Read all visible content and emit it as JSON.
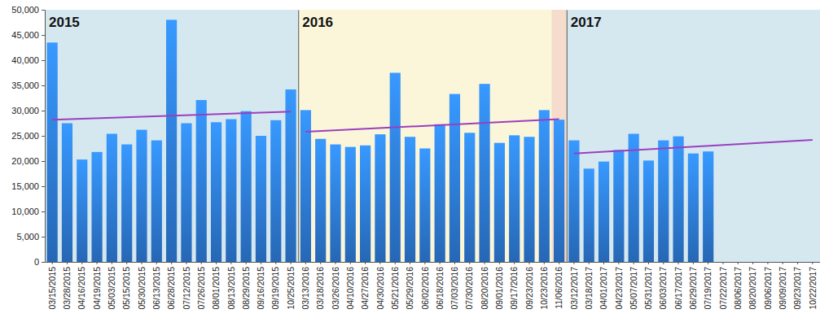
{
  "chart_data": [
    {
      "type": "bar",
      "title": "2015",
      "categories": [
        "03/15/2015",
        "03/28/2015",
        "04/16/2015",
        "04/19/2015",
        "05/03/2015",
        "05/15/2015",
        "05/30/2015",
        "06/13/2015",
        "06/28/2015",
        "07/12/2015",
        "07/26/2015",
        "08/01/2015",
        "08/13/2015",
        "08/29/2015",
        "09/16/2015",
        "09/19/2015",
        "10/25/2015"
      ],
      "values": [
        43500,
        27500,
        20300,
        21800,
        25400,
        23300,
        26200,
        24100,
        48000,
        27500,
        32100,
        27700,
        28300,
        29900,
        25000,
        28100,
        34200
      ],
      "trend": [
        28200,
        29800
      ],
      "color": "#2f80e0",
      "ylim": [
        0,
        50000
      ],
      "yticks": [
        0,
        {
          "value": 5000,
          "label": "5,000"
        },
        {
          "value": 10000,
          "label": "10,000"
        },
        {
          "value": 15000,
          "label": "15,000"
        },
        {
          "value": 20000,
          "label": "20,000"
        },
        {
          "value": 25000,
          "label": "25,000"
        },
        {
          "value": 30000,
          "label": "30,000"
        },
        {
          "value": 35000,
          "label": "35,000"
        },
        {
          "value": 40000,
          "label": "40,000"
        },
        {
          "value": 45000,
          "label": "45,000"
        },
        {
          "value": 50000,
          "label": "50,000"
        }
      ]
    },
    {
      "type": "bar",
      "title": "2016",
      "categories": [
        "03/13/2016",
        "03/18/2016",
        "03/26/2016",
        "04/10/2016",
        "04/27/2016",
        "04/30/2016",
        "05/21/2016",
        "05/29/2016",
        "06/02/2016",
        "06/18/2016",
        "07/03/2016",
        "07/30/2016",
        "08/20/2016",
        "09/01/2016",
        "09/17/2016",
        "09/23/2016",
        "10/23/2016",
        "11/06/2016"
      ],
      "values": [
        30100,
        24400,
        23300,
        22800,
        23100,
        25300,
        37500,
        24800,
        22500,
        27300,
        33300,
        25600,
        35300,
        23600,
        25100,
        24800,
        30100,
        28200
      ],
      "trend": [
        25800,
        28300
      ],
      "color": "#2f80e0",
      "ylim": [
        0,
        50000
      ],
      "tick_labels": "x"
    },
    {
      "type": "bar",
      "title": "2017",
      "categories": [
        "03/12/2017",
        "03/18/2017",
        "04/01/2017",
        "04/23/2017",
        "05/07/2017",
        "05/31/2017",
        "06/03/2017",
        "06/17/2017",
        "06/29/2017",
        "07/19/2017",
        "07/22/2017",
        "08/06/2017",
        "08/20/2017",
        "09/06/2017",
        "09/09/2017",
        "09/23/2017",
        "10/22/2017"
      ],
      "values": [
        24100,
        18500,
        19900,
        22200,
        25400,
        20100,
        24100,
        24900,
        21500,
        21900,
        null,
        null,
        null,
        null,
        null,
        null,
        null
      ],
      "trend": [
        21500,
        24200
      ],
      "color": "#2f80e0",
      "ylim": [
        0,
        50000
      ],
      "tick_labels": "x"
    }
  ]
}
